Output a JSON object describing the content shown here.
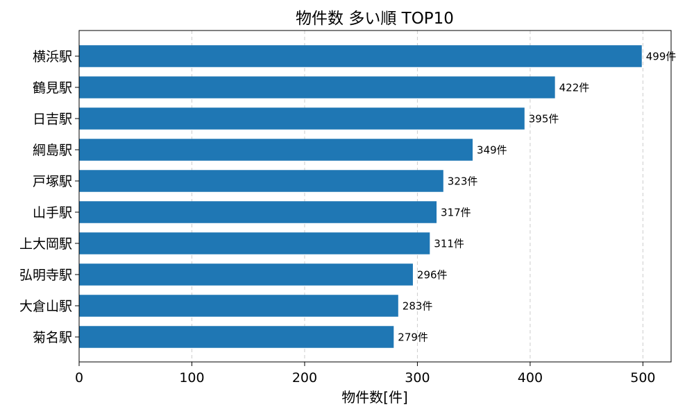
{
  "chart_data": {
    "type": "bar",
    "orientation": "horizontal",
    "title": "物件数 多い順 TOP10",
    "xlabel": "物件数[件]",
    "ylabel": "",
    "categories": [
      "横浜駅",
      "鶴見駅",
      "日吉駅",
      "綱島駅",
      "戸塚駅",
      "山手駅",
      "上大岡駅",
      "弘明寺駅",
      "大倉山駅",
      "菊名駅"
    ],
    "values": [
      499,
      422,
      395,
      349,
      323,
      317,
      311,
      296,
      283,
      279
    ],
    "data_labels": [
      "499件",
      "422件",
      "395件",
      "349件",
      "323件",
      "317件",
      "311件",
      "296件",
      "283件",
      "279件"
    ],
    "xlim": [
      0,
      525
    ],
    "xticks": [
      0,
      100,
      200,
      300,
      400,
      500
    ],
    "xtick_labels": [
      "0",
      "100",
      "200",
      "300",
      "400",
      "500"
    ],
    "grid": "x-dashed",
    "legend": "none",
    "bar_color": "#1f77b4"
  }
}
